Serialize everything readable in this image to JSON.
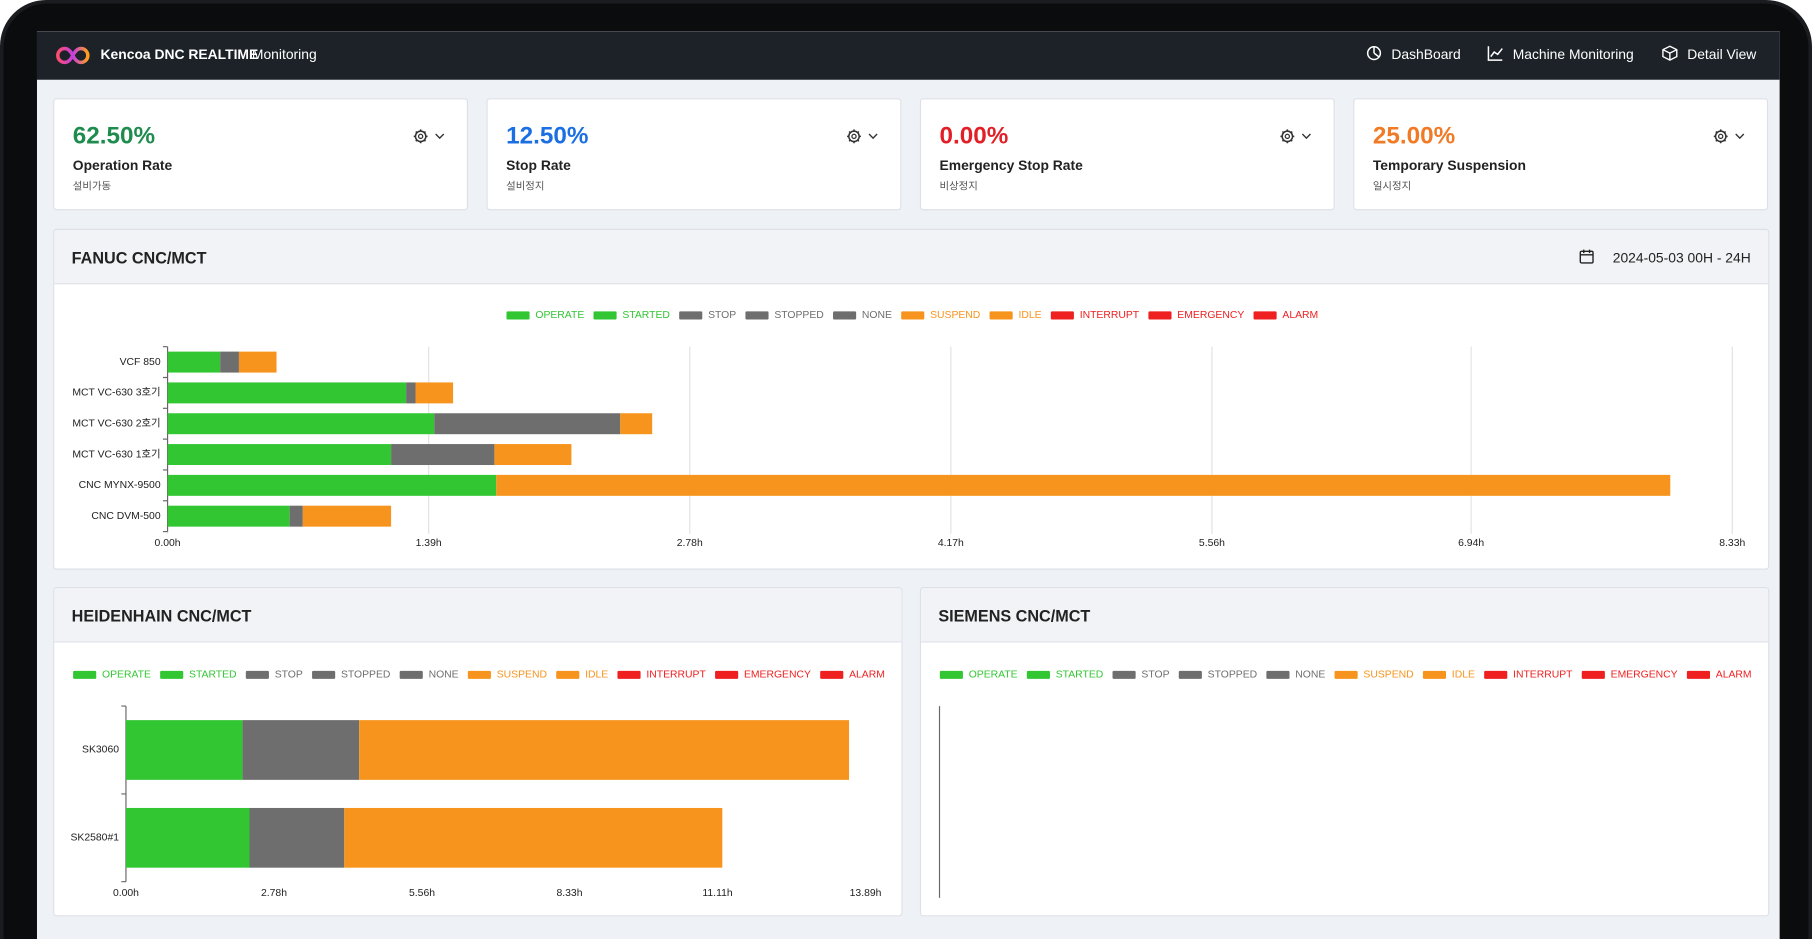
{
  "header": {
    "brand": "Kencoa DNC REALTIME",
    "section": "Monitoring",
    "nav": [
      "DashBoard",
      "Machine Monitoring",
      "Detail View"
    ]
  },
  "cards": [
    {
      "value": "62.50%",
      "label": "Operation Rate",
      "sublabel": "설비가동",
      "color": "#1e8c4e"
    },
    {
      "value": "12.50%",
      "label": "Stop Rate",
      "sublabel": "설비정지",
      "color": "#1b6fe3"
    },
    {
      "value": "0.00%",
      "label": "Emergency Stop Rate",
      "sublabel": "비상정지",
      "color": "#e21f26"
    },
    {
      "value": "25.00%",
      "label": "Temporary Suspension",
      "sublabel": "일시정지",
      "color": "#f07a25"
    }
  ],
  "panels": [
    {
      "title": "FANUC CNC/MCT",
      "date": "2024-05-03 00H - 24H",
      "chart_data": {
        "type": "bar",
        "orientation": "horizontal",
        "stacked": true,
        "grid": true,
        "categories": [
          "VCF 850",
          "MCT VC-630 3호기",
          "MCT VC-630 2호기",
          "MCT VC-630 1호기",
          "CNC MYNX-9500",
          "CNC DVM-500"
        ],
        "series": [
          {
            "name": "OPERATE",
            "color": "#33c633",
            "values": [
              0.28,
              1.27,
              1.42,
              1.19,
              1.75,
              0.65
            ]
          },
          {
            "name": "STARTED",
            "color": "#33c633",
            "values": [
              0,
              0,
              0,
              0,
              0,
              0
            ]
          },
          {
            "name": "STOP",
            "color": "#6e6e6e",
            "values": [
              0.1,
              0.05,
              0.99,
              0.55,
              0,
              0.07
            ]
          },
          {
            "name": "STOPPED",
            "color": "#6e6e6e",
            "values": [
              0,
              0,
              0,
              0,
              0,
              0
            ]
          },
          {
            "name": "NONE",
            "color": "#6e6e6e",
            "values": [
              0,
              0,
              0,
              0,
              0,
              0
            ]
          },
          {
            "name": "SUSPEND",
            "color": "#f7941d",
            "values": [
              0.2,
              0.2,
              0.17,
              0.41,
              6.25,
              0.47
            ]
          },
          {
            "name": "IDLE",
            "color": "#f7941d",
            "values": [
              0,
              0,
              0,
              0,
              0,
              0
            ]
          },
          {
            "name": "INTERRUPT",
            "color": "#ee2020",
            "values": [
              0,
              0,
              0,
              0,
              0,
              0
            ]
          },
          {
            "name": "EMERGENCY",
            "color": "#ee2020",
            "values": [
              0,
              0,
              0,
              0,
              0,
              0
            ]
          },
          {
            "name": "ALARM",
            "color": "#ee2020",
            "values": [
              0,
              0,
              0,
              0,
              0,
              0
            ]
          }
        ],
        "xlim": [
          0,
          8.33
        ],
        "xticks": [
          {
            "value": 0,
            "label": "0.00h"
          },
          {
            "value": 1.39,
            "label": "1.39h"
          },
          {
            "value": 2.78,
            "label": "2.78h"
          },
          {
            "value": 4.17,
            "label": "4.17h"
          },
          {
            "value": 5.56,
            "label": "5.56h"
          },
          {
            "value": 6.94,
            "label": "6.94h"
          },
          {
            "value": 8.33,
            "label": "8.33h"
          }
        ]
      }
    },
    {
      "title": "HEIDENHAIN CNC/MCT",
      "chart_data": {
        "type": "bar",
        "orientation": "horizontal",
        "stacked": true,
        "grid": false,
        "categories": [
          "SK3060",
          "SK2580#1"
        ],
        "series": [
          {
            "name": "OPERATE",
            "color": "#33c633",
            "values": [
              2.19,
              2.32
            ]
          },
          {
            "name": "STARTED",
            "color": "#33c633",
            "values": [
              0,
              0
            ]
          },
          {
            "name": "STOP",
            "color": "#6e6e6e",
            "values": [
              2.19,
              1.78
            ]
          },
          {
            "name": "STOPPED",
            "color": "#6e6e6e",
            "values": [
              0,
              0
            ]
          },
          {
            "name": "NONE",
            "color": "#6e6e6e",
            "values": [
              0,
              0
            ]
          },
          {
            "name": "SUSPEND",
            "color": "#f7941d",
            "values": [
              9.2,
              7.1
            ]
          },
          {
            "name": "IDLE",
            "color": "#f7941d",
            "values": [
              0,
              0
            ]
          },
          {
            "name": "INTERRUPT",
            "color": "#ee2020",
            "values": [
              0,
              0
            ]
          },
          {
            "name": "EMERGENCY",
            "color": "#ee2020",
            "values": [
              0,
              0
            ]
          },
          {
            "name": "ALARM",
            "color": "#ee2020",
            "values": [
              0,
              0
            ]
          }
        ],
        "xlim": [
          0,
          13.89
        ],
        "xticks": [
          {
            "value": 0,
            "label": "0.00h"
          },
          {
            "value": 2.78,
            "label": "2.78h"
          },
          {
            "value": 5.56,
            "label": "5.56h"
          },
          {
            "value": 8.33,
            "label": "8.33h"
          },
          {
            "value": 11.11,
            "label": "11.11h"
          },
          {
            "value": 13.89,
            "label": "13.89h"
          }
        ]
      }
    },
    {
      "title": "SIEMENS CNC/MCT",
      "chart_data": {
        "type": "bar",
        "orientation": "horizontal",
        "stacked": true,
        "grid": false,
        "categories": [],
        "series": [
          {
            "name": "OPERATE",
            "color": "#33c633",
            "values": []
          },
          {
            "name": "STARTED",
            "color": "#33c633",
            "values": []
          },
          {
            "name": "STOP",
            "color": "#6e6e6e",
            "values": []
          },
          {
            "name": "STOPPED",
            "color": "#6e6e6e",
            "values": []
          },
          {
            "name": "NONE",
            "color": "#6e6e6e",
            "values": []
          },
          {
            "name": "SUSPEND",
            "color": "#f7941d",
            "values": []
          },
          {
            "name": "IDLE",
            "color": "#f7941d",
            "values": []
          },
          {
            "name": "INTERRUPT",
            "color": "#ee2020",
            "values": []
          },
          {
            "name": "EMERGENCY",
            "color": "#ee2020",
            "values": []
          },
          {
            "name": "ALARM",
            "color": "#ee2020",
            "values": []
          }
        ]
      }
    }
  ]
}
